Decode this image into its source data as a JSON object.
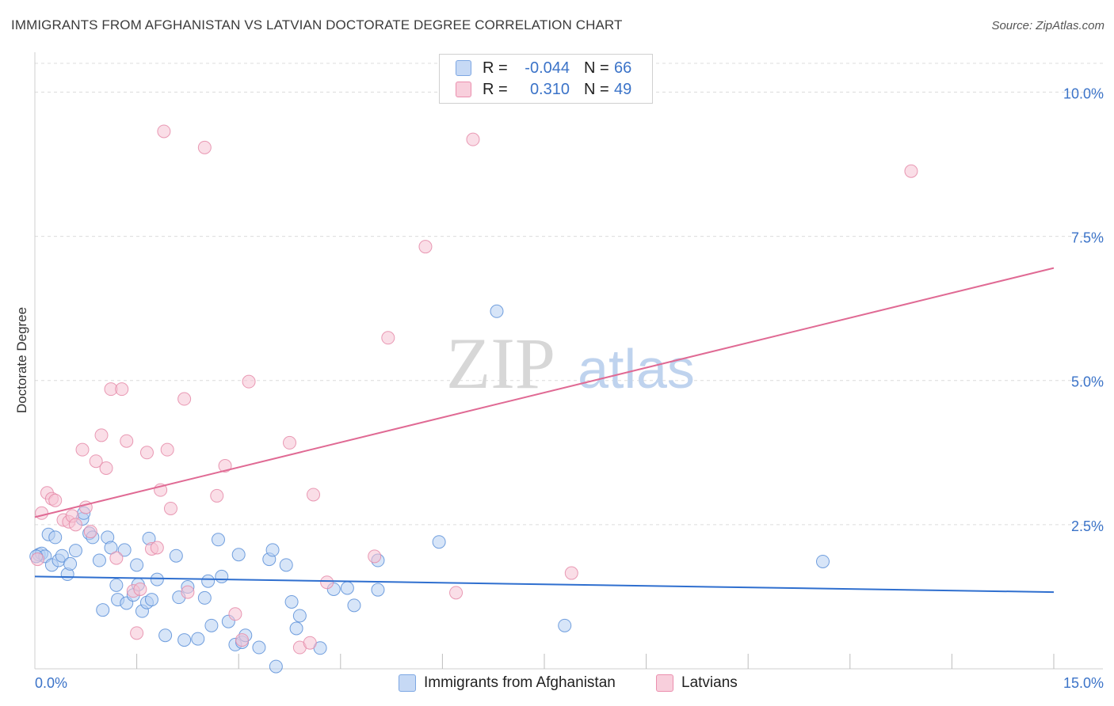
{
  "title": "IMMIGRANTS FROM AFGHANISTAN VS LATVIAN DOCTORATE DEGREE CORRELATION CHART",
  "source": "Source: ZipAtlas.com",
  "watermark": {
    "zip": "ZIP",
    "atlas": "atlas"
  },
  "legend": {
    "r_label": "R =",
    "n_label": "N =",
    "rows": [
      {
        "r": "-0.044",
        "n": "66",
        "fill": "#c6d9f5",
        "stroke": "#7da7e3"
      },
      {
        "r": "0.310",
        "n": "49",
        "fill": "#f8cfdc",
        "stroke": "#eb8fae"
      }
    ]
  },
  "chart_data": {
    "type": "scatter",
    "title": "IMMIGRANTS FROM AFGHANISTAN VS LATVIAN DOCTORATE DEGREE CORRELATION CHART",
    "xlabel": "",
    "ylabel": "Doctorate Degree",
    "xlim": [
      0,
      15
    ],
    "ylim": [
      0,
      10.5
    ],
    "x_tick_labels": [
      {
        "value": 0,
        "label": "0.0%"
      },
      {
        "value": 15,
        "label": "15.0%"
      }
    ],
    "y_tick_labels": [
      {
        "value": 2.5,
        "label": "2.5%"
      },
      {
        "value": 5.0,
        "label": "5.0%"
      },
      {
        "value": 7.5,
        "label": "7.5%"
      },
      {
        "value": 10.0,
        "label": "10.0%"
      }
    ],
    "x_minor_ticks": [
      1.5,
      3.0,
      4.5,
      6.0,
      7.5,
      9.0,
      10.5,
      12.0,
      13.5,
      15.0
    ],
    "series": [
      {
        "name": "Immigrants from Afghanistan",
        "color": "#5b8fd8",
        "fill": "#b7cff2",
        "trend": {
          "x": [
            0,
            15
          ],
          "y": [
            1.6,
            1.33
          ],
          "color": "#2f6fcf"
        },
        "points": [
          [
            0.06,
            1.98
          ],
          [
            0.1,
            2.0
          ],
          [
            0.15,
            1.95
          ],
          [
            0.2,
            2.33
          ],
          [
            0.25,
            1.8
          ],
          [
            0.3,
            2.28
          ],
          [
            0.35,
            1.88
          ],
          [
            0.4,
            1.96
          ],
          [
            0.48,
            1.64
          ],
          [
            0.52,
            1.82
          ],
          [
            0.6,
            2.05
          ],
          [
            0.7,
            2.6
          ],
          [
            0.72,
            2.7
          ],
          [
            0.8,
            2.35
          ],
          [
            0.85,
            2.28
          ],
          [
            0.95,
            1.88
          ],
          [
            1.0,
            1.02
          ],
          [
            1.07,
            2.28
          ],
          [
            1.12,
            2.1
          ],
          [
            1.2,
            1.45
          ],
          [
            1.22,
            1.2
          ],
          [
            1.32,
            2.06
          ],
          [
            1.35,
            1.14
          ],
          [
            1.45,
            1.28
          ],
          [
            1.5,
            1.8
          ],
          [
            1.52,
            1.46
          ],
          [
            1.58,
            1.0
          ],
          [
            1.65,
            1.15
          ],
          [
            1.68,
            2.26
          ],
          [
            1.72,
            1.2
          ],
          [
            1.8,
            1.55
          ],
          [
            1.92,
            0.58
          ],
          [
            2.08,
            1.96
          ],
          [
            2.12,
            1.24
          ],
          [
            2.2,
            0.5
          ],
          [
            2.25,
            1.42
          ],
          [
            2.4,
            0.52
          ],
          [
            2.5,
            1.23
          ],
          [
            2.55,
            1.52
          ],
          [
            2.6,
            0.75
          ],
          [
            2.7,
            2.24
          ],
          [
            2.75,
            1.6
          ],
          [
            2.85,
            0.82
          ],
          [
            2.95,
            0.42
          ],
          [
            3.0,
            1.98
          ],
          [
            3.05,
            0.46
          ],
          [
            3.1,
            0.58
          ],
          [
            3.3,
            0.37
          ],
          [
            3.45,
            1.9
          ],
          [
            3.5,
            2.06
          ],
          [
            3.55,
            0.04
          ],
          [
            3.7,
            1.8
          ],
          [
            3.78,
            1.16
          ],
          [
            3.85,
            0.7
          ],
          [
            3.9,
            0.92
          ],
          [
            4.2,
            0.36
          ],
          [
            4.4,
            1.38
          ],
          [
            4.6,
            1.4
          ],
          [
            4.7,
            1.1
          ],
          [
            5.05,
            1.88
          ],
          [
            5.05,
            1.37
          ],
          [
            5.95,
            2.2
          ],
          [
            6.8,
            6.2
          ],
          [
            7.8,
            0.75
          ],
          [
            11.6,
            1.86
          ],
          [
            0.02,
            1.95
          ]
        ]
      },
      {
        "name": "Latvians",
        "color": "#e58aa8",
        "fill": "#f6c2d3",
        "trend": {
          "x": [
            0,
            15
          ],
          "y": [
            2.63,
            6.95
          ],
          "color": "#e06a94"
        },
        "points": [
          [
            0.04,
            1.9
          ],
          [
            0.1,
            2.7
          ],
          [
            0.18,
            3.05
          ],
          [
            0.25,
            2.95
          ],
          [
            0.3,
            2.92
          ],
          [
            0.42,
            2.58
          ],
          [
            0.5,
            2.55
          ],
          [
            0.55,
            2.65
          ],
          [
            0.6,
            2.5
          ],
          [
            0.7,
            3.8
          ],
          [
            0.75,
            2.8
          ],
          [
            0.82,
            2.38
          ],
          [
            0.9,
            3.6
          ],
          [
            0.98,
            4.05
          ],
          [
            1.05,
            3.48
          ],
          [
            1.12,
            4.85
          ],
          [
            1.2,
            1.92
          ],
          [
            1.28,
            4.85
          ],
          [
            1.35,
            3.95
          ],
          [
            1.45,
            1.35
          ],
          [
            1.5,
            0.62
          ],
          [
            1.55,
            1.38
          ],
          [
            1.65,
            3.75
          ],
          [
            1.72,
            2.08
          ],
          [
            1.8,
            2.1
          ],
          [
            1.85,
            3.1
          ],
          [
            1.95,
            3.8
          ],
          [
            2.0,
            2.78
          ],
          [
            2.2,
            4.68
          ],
          [
            2.25,
            1.33
          ],
          [
            2.5,
            9.04
          ],
          [
            2.68,
            3.0
          ],
          [
            2.8,
            3.52
          ],
          [
            2.95,
            0.95
          ],
          [
            3.05,
            0.5
          ],
          [
            3.15,
            4.98
          ],
          [
            3.75,
            3.92
          ],
          [
            3.9,
            0.37
          ],
          [
            4.05,
            0.45
          ],
          [
            4.1,
            3.02
          ],
          [
            4.3,
            1.5
          ],
          [
            5.0,
            1.95
          ],
          [
            5.2,
            5.74
          ],
          [
            5.75,
            7.32
          ],
          [
            6.2,
            1.32
          ],
          [
            6.45,
            9.18
          ],
          [
            7.9,
            1.66
          ],
          [
            12.9,
            8.63
          ],
          [
            1.9,
            9.32
          ]
        ]
      }
    ]
  }
}
